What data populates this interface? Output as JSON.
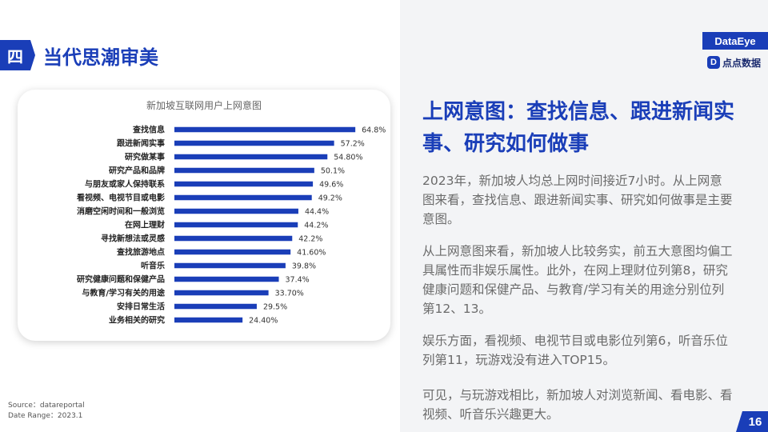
{
  "section": {
    "tag": "四",
    "title": "当代思潮审美"
  },
  "logos": {
    "primary": "DataEye",
    "secondary_mark": "D",
    "secondary_text": "点点数据"
  },
  "chart_data": {
    "type": "bar",
    "orientation": "horizontal",
    "title": "新加坡互联网用户上网意图",
    "categories": [
      "查找信息",
      "跟进新闻实事",
      "研究做某事",
      "研究产品和品牌",
      "与朋友或家人保持联系",
      "看视频、电视节目或电影",
      "消磨空闲时间和一般浏览",
      "在网上理财",
      "寻找新想法或灵感",
      "查找旅游地点",
      "听音乐",
      "研究健康问题和保健产品",
      "与教育/学习有关的用途",
      "安排日常生活",
      "业务相关的研究"
    ],
    "values": [
      64.8,
      57.2,
      54.8,
      50.1,
      49.6,
      49.2,
      44.4,
      44.2,
      42.2,
      41.6,
      39.8,
      37.4,
      33.7,
      29.5,
      24.4
    ],
    "value_labels": [
      "64.8%",
      "57.2%",
      "54.80%",
      "50.1%",
      "49.6%",
      "49.2%",
      "44.4%",
      "44.2%",
      "42.2%",
      "41.60%",
      "39.8%",
      "37.4%",
      "33.70%",
      "29.5%",
      "24.40%"
    ],
    "xlim": [
      0,
      70
    ],
    "bar_color": "#1a3eb8",
    "grid": false
  },
  "source": {
    "line1": "Source：datareportal",
    "line2": "Date Range：2023.1"
  },
  "right": {
    "headline": "上网意图：查找信息、跟进新闻实事、研究如何做事",
    "paragraphs": [
      "2023年，新加坡人均总上网时间接近7小时。从上网意图来看，查找信息、跟进新闻实事、研究如何做事是主要意图。",
      "从上网意图来看，新加坡人比较务实，前五大意图均偏工具属性而非娱乐属性。此外，在网上理财位列第8，研究健康问题和保健产品、与教育/学习有关的用途分别位列第12、13。",
      "娱乐方面，看视频、电视节目或电影位列第6，听音乐位列第11，玩游戏没有进入TOP15。",
      "可见，与玩游戏相比，新加坡人对浏览新闻、看电影、看视频、听音乐兴趣更大。"
    ]
  },
  "page_number": "16",
  "colors": {
    "accent": "#1a3eb8",
    "panel": "#f3f4f6",
    "body_text": "#6b6b6b"
  }
}
